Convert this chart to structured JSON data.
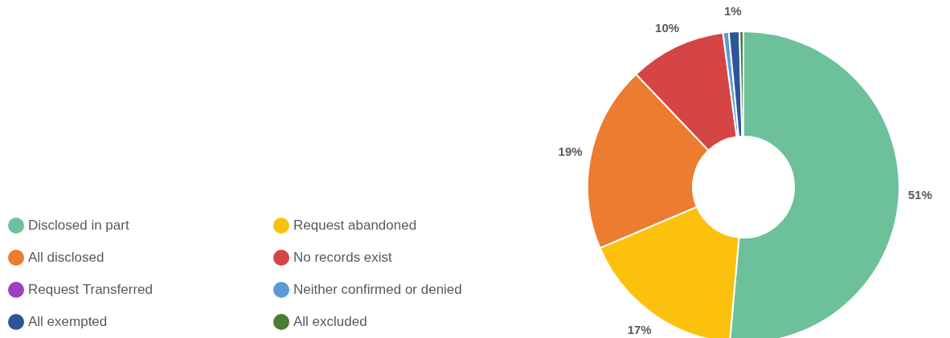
{
  "chart_data": {
    "type": "donut",
    "categories": [
      "Disclosed in part",
      "Request abandoned",
      "All disclosed",
      "No records exist",
      "Request Transferred",
      "Neither confirmed or denied",
      "All exempted",
      "All excluded"
    ],
    "values": [
      51.4,
      17.2,
      19.3,
      10.0,
      0,
      0.6,
      1.1,
      0.4
    ],
    "colors": [
      "#6cc09a",
      "#fcc10c",
      "#ec7c30",
      "#d64545",
      "#9c3fc0",
      "#5b9bd5",
      "#2e5597",
      "#4a7d34"
    ],
    "value_labels": [
      "51%",
      "17%",
      "19%",
      "10%",
      null,
      null,
      "1%",
      null
    ],
    "legend": "bottom left"
  }
}
